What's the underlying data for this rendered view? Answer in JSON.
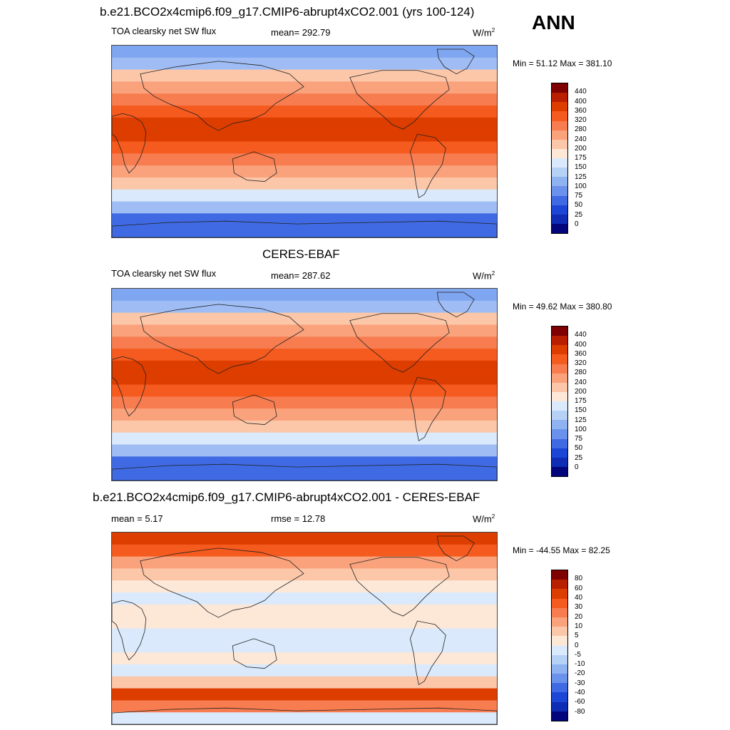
{
  "header": {
    "main_title": "b.e21.BCO2x4cmip6.f09_g17.CMIP6-abrupt4xCO2.001 (yrs 100-124)",
    "season": "ANN"
  },
  "panels": [
    {
      "variable": "TOA clearsky net SW flux",
      "stat1": "mean= 292.79",
      "stat2": "",
      "units": "W/m",
      "units_sup": "2",
      "minmax": "Min =  51.12 Max = 381.10"
    },
    {
      "title": "CERES-EBAF",
      "variable": "TOA clearsky net SW flux",
      "stat1": "mean= 287.62",
      "stat2": "",
      "units": "W/m",
      "units_sup": "2",
      "minmax": "Min =  49.62 Max = 380.80"
    },
    {
      "title": "b.e21.BCO2x4cmip6.f09_g17.CMIP6-abrupt4xCO2.001 - CERES-EBAF",
      "variable": "",
      "stat1": "mean =   5.17",
      "stat2": "rmse =  12.78",
      "units": "W/m",
      "units_sup": "2",
      "minmax": "Min = -44.55 Max =  82.25"
    }
  ],
  "colorbar_abs": {
    "labels": [
      "440",
      "400",
      "360",
      "320",
      "280",
      "240",
      "200",
      "175",
      "150",
      "125",
      "100",
      "75",
      "50",
      "25",
      "0"
    ],
    "colors": [
      "#7f0000",
      "#b81f00",
      "#de3d00",
      "#f55a1e",
      "#f77d50",
      "#f9a27c",
      "#fbc7a8",
      "#fde8d8",
      "#dae9fb",
      "#b6d1f6",
      "#8fb2f0",
      "#6a92ec",
      "#3f6ae3",
      "#1b46d6",
      "#0f2cb4",
      "#03067a"
    ]
  },
  "colorbar_diff": {
    "labels": [
      "80",
      "60",
      "40",
      "30",
      "20",
      "10",
      "5",
      "0",
      "-5",
      "-10",
      "-20",
      "-30",
      "-40",
      "-60",
      "-80"
    ],
    "colors": [
      "#7f0000",
      "#b81f00",
      "#de3d00",
      "#f55a1e",
      "#f77d50",
      "#f9a27c",
      "#fbc7a8",
      "#fde8d8",
      "#dae9fb",
      "#b6d1f6",
      "#8fb2f0",
      "#6a92ec",
      "#3f6ae3",
      "#1b46d6",
      "#0f2cb4",
      "#03067a"
    ]
  },
  "map_bands": {
    "abs": [
      "#7fa6f0",
      "#9fbdf4",
      "#fbc7a8",
      "#f9a27c",
      "#f77d50",
      "#f55a1e",
      "#de3d00",
      "#de3d00",
      "#f55a1e",
      "#f77d50",
      "#f9a27c",
      "#fbc7a8",
      "#dae9fb",
      "#9fbdf4",
      "#3f6ae3",
      "#3f6ae3"
    ],
    "diff": [
      "#de3d00",
      "#f55a1e",
      "#f9a27c",
      "#fbc7a8",
      "#fde8d8",
      "#dae9fb",
      "#fde8d8",
      "#fde8d8",
      "#dae9fb",
      "#dae9fb",
      "#fde8d8",
      "#dae9fb",
      "#fbc7a8",
      "#de3d00",
      "#f77d50",
      "#dae9fb"
    ]
  }
}
